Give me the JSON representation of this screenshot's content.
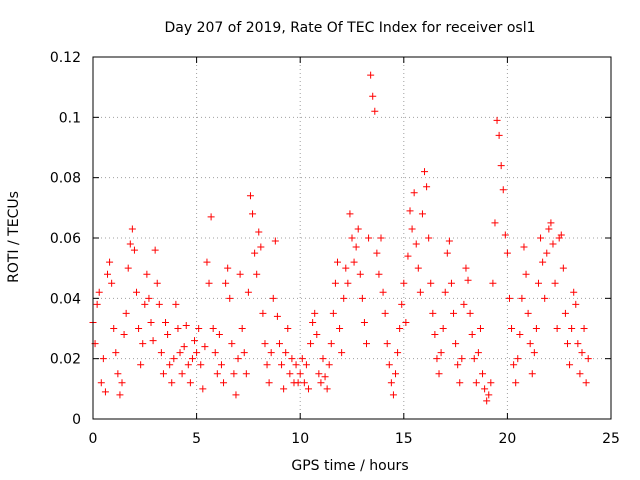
{
  "chart_data": {
    "type": "scatter",
    "title": "Day 207 of 2019, Rate Of TEC Index for receiver osl1",
    "xlabel": "GPS time / hours",
    "ylabel": "ROTI / TECUs",
    "xlim": [
      0,
      25
    ],
    "ylim": [
      0,
      0.12
    ],
    "xticks": [
      0,
      5,
      10,
      15,
      20,
      25
    ],
    "xtick_labels": [
      "0",
      "5",
      "10",
      "15",
      "20",
      "25"
    ],
    "yticks": [
      0,
      0.02,
      0.04,
      0.06,
      0.08,
      0.1,
      0.12
    ],
    "ytick_labels": [
      "0",
      "0.02",
      "0.04",
      "0.06",
      "0.08",
      "0.1",
      "0.12"
    ],
    "grid": true,
    "marker": "plus",
    "color": "#ff0000",
    "series": [
      {
        "name": "ROTI",
        "points": [
          [
            0.0,
            0.032
          ],
          [
            0.1,
            0.025
          ],
          [
            0.2,
            0.038
          ],
          [
            0.3,
            0.042
          ],
          [
            0.4,
            0.012
          ],
          [
            0.5,
            0.02
          ],
          [
            0.6,
            0.009
          ],
          [
            0.7,
            0.048
          ],
          [
            0.8,
            0.052
          ],
          [
            0.9,
            0.045
          ],
          [
            1.0,
            0.03
          ],
          [
            1.1,
            0.022
          ],
          [
            1.2,
            0.015
          ],
          [
            1.3,
            0.008
          ],
          [
            1.4,
            0.012
          ],
          [
            1.5,
            0.028
          ],
          [
            1.6,
            0.035
          ],
          [
            1.7,
            0.05
          ],
          [
            1.8,
            0.058
          ],
          [
            1.9,
            0.063
          ],
          [
            2.0,
            0.056
          ],
          [
            2.1,
            0.042
          ],
          [
            2.2,
            0.03
          ],
          [
            2.3,
            0.018
          ],
          [
            2.4,
            0.025
          ],
          [
            2.5,
            0.038
          ],
          [
            2.6,
            0.048
          ],
          [
            2.7,
            0.04
          ],
          [
            2.8,
            0.032
          ],
          [
            2.9,
            0.026
          ],
          [
            3.0,
            0.056
          ],
          [
            3.1,
            0.045
          ],
          [
            3.2,
            0.038
          ],
          [
            3.3,
            0.022
          ],
          [
            3.4,
            0.015
          ],
          [
            3.5,
            0.032
          ],
          [
            3.6,
            0.028
          ],
          [
            3.7,
            0.018
          ],
          [
            3.8,
            0.012
          ],
          [
            3.9,
            0.02
          ],
          [
            4.0,
            0.038
          ],
          [
            4.1,
            0.03
          ],
          [
            4.2,
            0.022
          ],
          [
            4.3,
            0.015
          ],
          [
            4.4,
            0.024
          ],
          [
            4.5,
            0.031
          ],
          [
            4.6,
            0.018
          ],
          [
            4.7,
            0.012
          ],
          [
            4.8,
            0.02
          ],
          [
            4.9,
            0.026
          ],
          [
            5.0,
            0.022
          ],
          [
            5.1,
            0.03
          ],
          [
            5.2,
            0.018
          ],
          [
            5.3,
            0.01
          ],
          [
            5.4,
            0.024
          ],
          [
            5.5,
            0.052
          ],
          [
            5.6,
            0.045
          ],
          [
            5.7,
            0.067
          ],
          [
            5.8,
            0.03
          ],
          [
            5.9,
            0.022
          ],
          [
            6.0,
            0.015
          ],
          [
            6.1,
            0.028
          ],
          [
            6.2,
            0.018
          ],
          [
            6.3,
            0.012
          ],
          [
            6.4,
            0.045
          ],
          [
            6.5,
            0.05
          ],
          [
            6.6,
            0.04
          ],
          [
            6.7,
            0.025
          ],
          [
            6.8,
            0.015
          ],
          [
            6.9,
            0.008
          ],
          [
            7.0,
            0.02
          ],
          [
            7.1,
            0.048
          ],
          [
            7.2,
            0.03
          ],
          [
            7.3,
            0.022
          ],
          [
            7.4,
            0.015
          ],
          [
            7.5,
            0.042
          ],
          [
            7.6,
            0.074
          ],
          [
            7.7,
            0.068
          ],
          [
            7.8,
            0.055
          ],
          [
            7.9,
            0.048
          ],
          [
            8.0,
            0.062
          ],
          [
            8.1,
            0.057
          ],
          [
            8.2,
            0.035
          ],
          [
            8.3,
            0.025
          ],
          [
            8.4,
            0.018
          ],
          [
            8.5,
            0.012
          ],
          [
            8.6,
            0.022
          ],
          [
            8.7,
            0.04
          ],
          [
            8.8,
            0.059
          ],
          [
            8.9,
            0.034
          ],
          [
            9.0,
            0.025
          ],
          [
            9.1,
            0.018
          ],
          [
            9.2,
            0.01
          ],
          [
            9.3,
            0.022
          ],
          [
            9.4,
            0.03
          ],
          [
            9.5,
            0.015
          ],
          [
            9.6,
            0.02
          ],
          [
            9.7,
            0.012
          ],
          [
            9.8,
            0.018
          ],
          [
            9.9,
            0.012
          ],
          [
            10.0,
            0.015
          ],
          [
            10.1,
            0.02
          ],
          [
            10.2,
            0.012
          ],
          [
            10.3,
            0.018
          ],
          [
            10.4,
            0.01
          ],
          [
            10.5,
            0.025
          ],
          [
            10.6,
            0.032
          ],
          [
            10.7,
            0.035
          ],
          [
            10.8,
            0.028
          ],
          [
            10.9,
            0.015
          ],
          [
            11.0,
            0.012
          ],
          [
            11.1,
            0.02
          ],
          [
            11.2,
            0.014
          ],
          [
            11.3,
            0.01
          ],
          [
            11.4,
            0.018
          ],
          [
            11.5,
            0.025
          ],
          [
            11.6,
            0.035
          ],
          [
            11.7,
            0.045
          ],
          [
            11.8,
            0.052
          ],
          [
            11.9,
            0.03
          ],
          [
            12.0,
            0.022
          ],
          [
            12.1,
            0.04
          ],
          [
            12.2,
            0.05
          ],
          [
            12.3,
            0.045
          ],
          [
            12.4,
            0.068
          ],
          [
            12.5,
            0.06
          ],
          [
            12.6,
            0.052
          ],
          [
            12.7,
            0.057
          ],
          [
            12.8,
            0.063
          ],
          [
            12.9,
            0.048
          ],
          [
            13.0,
            0.04
          ],
          [
            13.1,
            0.032
          ],
          [
            13.2,
            0.025
          ],
          [
            13.3,
            0.06
          ],
          [
            13.4,
            0.114
          ],
          [
            13.5,
            0.107
          ],
          [
            13.6,
            0.102
          ],
          [
            13.7,
            0.055
          ],
          [
            13.8,
            0.048
          ],
          [
            13.9,
            0.06
          ],
          [
            14.0,
            0.042
          ],
          [
            14.1,
            0.035
          ],
          [
            14.2,
            0.025
          ],
          [
            14.3,
            0.018
          ],
          [
            14.4,
            0.012
          ],
          [
            14.5,
            0.008
          ],
          [
            14.6,
            0.015
          ],
          [
            14.7,
            0.022
          ],
          [
            14.8,
            0.03
          ],
          [
            14.9,
            0.038
          ],
          [
            15.0,
            0.045
          ],
          [
            15.1,
            0.032
          ],
          [
            15.2,
            0.054
          ],
          [
            15.3,
            0.069
          ],
          [
            15.4,
            0.063
          ],
          [
            15.5,
            0.075
          ],
          [
            15.6,
            0.058
          ],
          [
            15.7,
            0.05
          ],
          [
            15.8,
            0.042
          ],
          [
            15.9,
            0.068
          ],
          [
            16.0,
            0.082
          ],
          [
            16.1,
            0.077
          ],
          [
            16.2,
            0.06
          ],
          [
            16.3,
            0.045
          ],
          [
            16.4,
            0.035
          ],
          [
            16.5,
            0.028
          ],
          [
            16.6,
            0.02
          ],
          [
            16.7,
            0.015
          ],
          [
            16.8,
            0.022
          ],
          [
            16.9,
            0.03
          ],
          [
            17.0,
            0.042
          ],
          [
            17.1,
            0.055
          ],
          [
            17.2,
            0.059
          ],
          [
            17.3,
            0.045
          ],
          [
            17.4,
            0.035
          ],
          [
            17.5,
            0.025
          ],
          [
            17.6,
            0.018
          ],
          [
            17.7,
            0.012
          ],
          [
            17.8,
            0.02
          ],
          [
            17.9,
            0.038
          ],
          [
            18.0,
            0.05
          ],
          [
            18.1,
            0.046
          ],
          [
            18.2,
            0.035
          ],
          [
            18.3,
            0.028
          ],
          [
            18.4,
            0.02
          ],
          [
            18.5,
            0.012
          ],
          [
            18.6,
            0.022
          ],
          [
            18.7,
            0.03
          ],
          [
            18.8,
            0.015
          ],
          [
            18.9,
            0.01
          ],
          [
            19.0,
            0.006
          ],
          [
            19.1,
            0.008
          ],
          [
            19.2,
            0.012
          ],
          [
            19.3,
            0.045
          ],
          [
            19.4,
            0.065
          ],
          [
            19.5,
            0.099
          ],
          [
            19.6,
            0.094
          ],
          [
            19.7,
            0.084
          ],
          [
            19.8,
            0.076
          ],
          [
            19.9,
            0.061
          ],
          [
            20.0,
            0.055
          ],
          [
            20.1,
            0.04
          ],
          [
            20.2,
            0.03
          ],
          [
            20.3,
            0.018
          ],
          [
            20.4,
            0.012
          ],
          [
            20.5,
            0.02
          ],
          [
            20.6,
            0.028
          ],
          [
            20.7,
            0.04
          ],
          [
            20.8,
            0.057
          ],
          [
            20.9,
            0.048
          ],
          [
            21.0,
            0.035
          ],
          [
            21.1,
            0.025
          ],
          [
            21.2,
            0.015
          ],
          [
            21.3,
            0.022
          ],
          [
            21.4,
            0.03
          ],
          [
            21.5,
            0.045
          ],
          [
            21.6,
            0.06
          ],
          [
            21.7,
            0.052
          ],
          [
            21.8,
            0.04
          ],
          [
            21.9,
            0.055
          ],
          [
            22.0,
            0.063
          ],
          [
            22.1,
            0.065
          ],
          [
            22.2,
            0.058
          ],
          [
            22.3,
            0.045
          ],
          [
            22.4,
            0.03
          ],
          [
            22.5,
            0.06
          ],
          [
            22.6,
            0.061
          ],
          [
            22.7,
            0.05
          ],
          [
            22.8,
            0.035
          ],
          [
            22.9,
            0.025
          ],
          [
            23.0,
            0.018
          ],
          [
            23.1,
            0.03
          ],
          [
            23.2,
            0.042
          ],
          [
            23.3,
            0.038
          ],
          [
            23.4,
            0.025
          ],
          [
            23.5,
            0.015
          ],
          [
            23.6,
            0.022
          ],
          [
            23.7,
            0.03
          ],
          [
            23.8,
            0.012
          ],
          [
            23.9,
            0.02
          ]
        ]
      }
    ]
  }
}
